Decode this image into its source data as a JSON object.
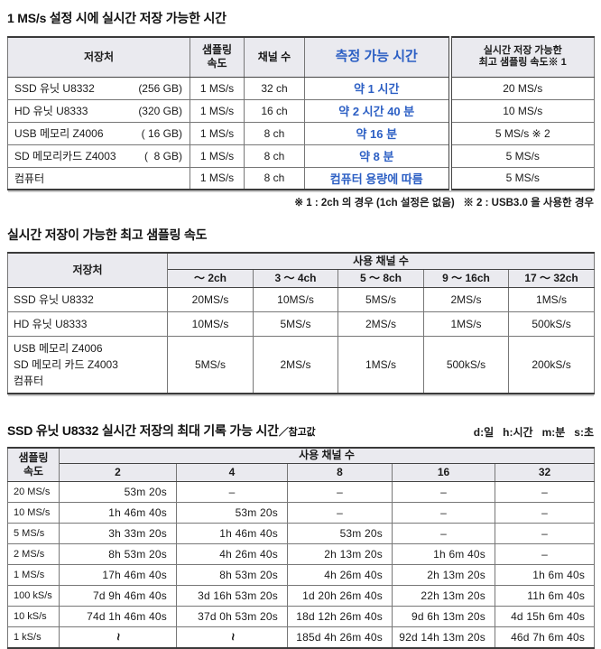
{
  "colors": {
    "accent_blue": "#2c5fc4",
    "header_bg": "#eaeaef"
  },
  "section1": {
    "title": "1 MS/s 설정 시에 실시간 저장 가능한 시간",
    "table": {
      "headers": {
        "dest": "저장처",
        "sampling": "샘플링\n속도",
        "channels": "채널 수",
        "time": "측정 가능 시간",
        "max": "실시간 저장 가능한\n최고 샘플링 속도※ 1"
      },
      "rows": [
        {
          "name": "SSD 유닛 U8332",
          "cap": "(256 GB)",
          "sampling": "1 MS/s",
          "channels": "32 ch",
          "time": "약 1 시간",
          "max": "20 MS/s"
        },
        {
          "name": "HD 유닛 U8333",
          "cap": "(320 GB)",
          "sampling": "1 MS/s",
          "channels": "16 ch",
          "time": "약 2 시간 40 분",
          "max": "10 MS/s"
        },
        {
          "name": "USB 메모리 Z4006",
          "cap": "( 16 GB)",
          "sampling": "1 MS/s",
          "channels": "8 ch",
          "time": "약  16 분",
          "max": "5 MS/s ※ 2"
        },
        {
          "name": "SD 메모리카드 Z4003",
          "cap": "(  8 GB)",
          "sampling": "1 MS/s",
          "channels": "8 ch",
          "time": "약  8 분",
          "max": "5 MS/s"
        },
        {
          "name": "컴퓨터",
          "cap": "",
          "sampling": "1 MS/s",
          "channels": "8 ch",
          "time": "컴퓨터 용량에 따름",
          "max": "5 MS/s"
        }
      ]
    },
    "footnote": "※ 1 : 2ch 의 경우 (1ch 설정은 없음)   ※ 2 : USB3.0 을 사용한 경우"
  },
  "section2": {
    "title": "실시간 저장이 가능한 최고 샘플링 속도",
    "table": {
      "dest_header": "저장처",
      "group_header": "사용 채널 수",
      "col_headers": [
        "～ 2ch",
        "3 ～ 4ch",
        "5 ～ 8ch",
        "9 ～ 16ch",
        "17 ～ 32ch"
      ],
      "rows": [
        {
          "name": "SSD 유닛  U8332",
          "values": [
            "20MS/s",
            "10MS/s",
            "5MS/s",
            "2MS/s",
            "1MS/s"
          ]
        },
        {
          "name": "HD 유닛 U8333",
          "values": [
            "10MS/s",
            "5MS/s",
            "2MS/s",
            "1MS/s",
            "500kS/s"
          ]
        },
        {
          "name": "USB 메모리 Z4006\nSD 메모리 카드  Z4003\n컴퓨터",
          "values": [
            "5MS/s",
            "2MS/s",
            "1MS/s",
            "500kS/s",
            "200kS/s"
          ]
        }
      ]
    }
  },
  "section3": {
    "title": "SSD 유닛 U8332 실시간 저장의 최대 기록 가능 시간",
    "title_suffix": "／참고값",
    "legend": "d:일   h:시간   m:분   s:초",
    "table": {
      "rate_header": "샘플링\n속도",
      "group_header": "사용 채널 수",
      "col_headers": [
        "2",
        "4",
        "8",
        "16",
        "32"
      ],
      "rows": [
        {
          "rate": "20 MS/s",
          "values": [
            "53m 20s",
            "–",
            "–",
            "–",
            "–"
          ]
        },
        {
          "rate": "10 MS/s",
          "values": [
            "1h 46m 40s",
            "53m 20s",
            "–",
            "–",
            "–"
          ]
        },
        {
          "rate": "5 MS/s",
          "values": [
            "3h 33m 20s",
            "1h 46m 40s",
            "53m 20s",
            "–",
            "–"
          ]
        },
        {
          "rate": "2 MS/s",
          "values": [
            "8h 53m 20s",
            "4h 26m 40s",
            "2h 13m 20s",
            "1h 6m 40s",
            "–"
          ]
        },
        {
          "rate": "1 MS/s",
          "values": [
            "17h 46m 40s",
            "8h 53m 20s",
            "4h 26m 40s",
            "2h 13m 20s",
            "1h 6m 40s"
          ]
        },
        {
          "rate": "100 kS/s",
          "values": [
            "7d 9h 46m 40s",
            "3d 16h 53m 20s",
            "1d 20h 26m 40s",
            "22h 13m 20s",
            "11h 6m 40s"
          ]
        },
        {
          "rate": "10 kS/s",
          "values": [
            "74d 1h 46m 40s",
            "37d 0h 53m 20s",
            "18d 12h 26m 40s",
            "9d 6h 13m 20s",
            "4d 15h 6m 40s"
          ]
        },
        {
          "rate": "1 kS/s",
          "values": [
            "~",
            "~",
            "185d 4h 26m 40s",
            "92d 14h 13m 20s",
            "46d 7h 6m 40s"
          ]
        }
      ]
    }
  }
}
